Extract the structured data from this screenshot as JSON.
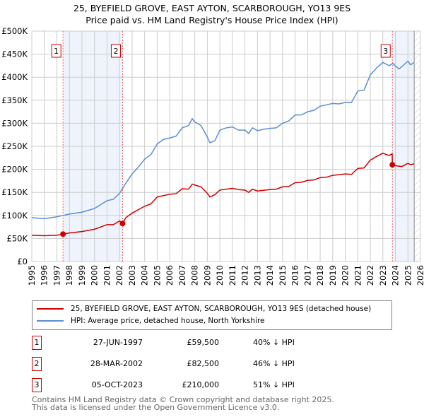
{
  "chart_data": {
    "type": "line",
    "title": "25, BYEFIELD GROVE, EAST AYTON, SCARBOROUGH, YO13 9ES",
    "subtitle": "Price paid vs. HM Land Registry's House Price Index (HPI)",
    "xlabel": "",
    "ylabel": "",
    "xlim": [
      1995,
      2026
    ],
    "ylim": [
      0,
      500000
    ],
    "x_ticks": [
      1995,
      1996,
      1997,
      1998,
      1999,
      2000,
      2001,
      2002,
      2003,
      2004,
      2005,
      2006,
      2007,
      2008,
      2009,
      2010,
      2011,
      2012,
      2013,
      2014,
      2015,
      2016,
      2017,
      2018,
      2019,
      2020,
      2021,
      2022,
      2023,
      2024,
      2025,
      2026
    ],
    "y_ticks": [
      {
        "v": 0,
        "label": "£0"
      },
      {
        "v": 50000,
        "label": "£50K"
      },
      {
        "v": 100000,
        "label": "£100K"
      },
      {
        "v": 150000,
        "label": "£150K"
      },
      {
        "v": 200000,
        "label": "£200K"
      },
      {
        "v": 250000,
        "label": "£250K"
      },
      {
        "v": 300000,
        "label": "£300K"
      },
      {
        "v": 350000,
        "label": "£350K"
      },
      {
        "v": 400000,
        "label": "£400K"
      },
      {
        "v": 450000,
        "label": "£450K"
      },
      {
        "v": 500000,
        "label": "£500K"
      }
    ],
    "grid": true,
    "shaded_ranges": [
      [
        1997.49,
        2002.24
      ],
      [
        2023.76,
        2025.5
      ]
    ],
    "projection_start": 2025.5,
    "series": [
      {
        "name": "25, BYEFIELD GROVE, EAST AYTON, SCARBOROUGH, YO13 9ES (detached house)",
        "color": "#cc0000",
        "points": [
          [
            1995,
            57000
          ],
          [
            1996,
            56000
          ],
          [
            1997,
            57000
          ],
          [
            1997.49,
            59500
          ],
          [
            1998,
            62000
          ],
          [
            1999,
            65000
          ],
          [
            2000,
            70000
          ],
          [
            2001,
            80000
          ],
          [
            2001.5,
            80000
          ],
          [
            2002,
            88000
          ],
          [
            2002.24,
            82500
          ],
          [
            2002.5,
            95000
          ],
          [
            2003,
            105000
          ],
          [
            2004,
            120000
          ],
          [
            2004.5,
            125000
          ],
          [
            2005,
            140000
          ],
          [
            2005.5,
            143000
          ],
          [
            2006,
            146000
          ],
          [
            2006.5,
            147000
          ],
          [
            2007,
            158000
          ],
          [
            2007.5,
            157000
          ],
          [
            2007.8,
            168000
          ],
          [
            2008,
            166000
          ],
          [
            2008.5,
            162000
          ],
          [
            2009,
            148000
          ],
          [
            2009.2,
            140000
          ],
          [
            2009.6,
            145000
          ],
          [
            2010,
            155000
          ],
          [
            2011,
            159000
          ],
          [
            2011.5,
            156000
          ],
          [
            2012,
            155000
          ],
          [
            2012.3,
            150000
          ],
          [
            2012.6,
            157000
          ],
          [
            2013,
            153000
          ],
          [
            2014,
            156000
          ],
          [
            2014.5,
            157000
          ],
          [
            2015,
            162000
          ],
          [
            2015.5,
            163000
          ],
          [
            2016,
            171000
          ],
          [
            2016.5,
            172000
          ],
          [
            2017,
            176000
          ],
          [
            2017.5,
            177000
          ],
          [
            2018,
            182000
          ],
          [
            2018.5,
            183000
          ],
          [
            2019,
            187000
          ],
          [
            2020,
            190000
          ],
          [
            2020.5,
            189000
          ],
          [
            2021,
            202000
          ],
          [
            2021.5,
            203000
          ],
          [
            2022,
            220000
          ],
          [
            2022.5,
            228000
          ],
          [
            2023,
            235000
          ],
          [
            2023.5,
            230000
          ],
          [
            2023.74,
            234000
          ],
          [
            2023.76,
            210000
          ],
          [
            2024,
            208000
          ],
          [
            2024.5,
            206000
          ],
          [
            2025,
            213000
          ],
          [
            2025.2,
            210000
          ],
          [
            2025.5,
            212000
          ]
        ]
      },
      {
        "name": "HPI: Average price, detached house, North Yorkshire",
        "color": "#5b8fd0",
        "points": [
          [
            1995,
            95000
          ],
          [
            1996,
            93000
          ],
          [
            1997,
            97000
          ],
          [
            1997.5,
            100000
          ],
          [
            1998,
            103000
          ],
          [
            1999,
            107000
          ],
          [
            2000,
            115000
          ],
          [
            2001,
            132000
          ],
          [
            2001.5,
            135000
          ],
          [
            2002,
            148000
          ],
          [
            2002.5,
            170000
          ],
          [
            2003,
            190000
          ],
          [
            2003.5,
            205000
          ],
          [
            2004,
            222000
          ],
          [
            2004.5,
            232000
          ],
          [
            2005,
            255000
          ],
          [
            2005.5,
            265000
          ],
          [
            2006,
            268000
          ],
          [
            2006.5,
            272000
          ],
          [
            2007,
            290000
          ],
          [
            2007.5,
            295000
          ],
          [
            2007.8,
            310000
          ],
          [
            2008,
            303000
          ],
          [
            2008.5,
            295000
          ],
          [
            2009,
            270000
          ],
          [
            2009.2,
            258000
          ],
          [
            2009.6,
            262000
          ],
          [
            2010,
            285000
          ],
          [
            2010.5,
            290000
          ],
          [
            2011,
            292000
          ],
          [
            2011.5,
            285000
          ],
          [
            2012,
            285000
          ],
          [
            2012.3,
            278000
          ],
          [
            2012.6,
            290000
          ],
          [
            2013,
            284000
          ],
          [
            2013.5,
            287000
          ],
          [
            2014,
            289000
          ],
          [
            2014.5,
            290000
          ],
          [
            2015,
            300000
          ],
          [
            2015.5,
            305000
          ],
          [
            2016,
            318000
          ],
          [
            2016.5,
            318000
          ],
          [
            2017,
            325000
          ],
          [
            2017.5,
            328000
          ],
          [
            2018,
            337000
          ],
          [
            2018.5,
            340000
          ],
          [
            2019,
            343000
          ],
          [
            2019.5,
            342000
          ],
          [
            2020,
            345000
          ],
          [
            2020.5,
            345000
          ],
          [
            2021,
            370000
          ],
          [
            2021.5,
            372000
          ],
          [
            2022,
            405000
          ],
          [
            2022.5,
            420000
          ],
          [
            2023,
            432000
          ],
          [
            2023.5,
            425000
          ],
          [
            2023.8,
            430000
          ],
          [
            2024,
            424000
          ],
          [
            2024.3,
            418000
          ],
          [
            2024.6,
            425000
          ],
          [
            2025,
            435000
          ],
          [
            2025.2,
            427000
          ],
          [
            2025.5,
            432000
          ]
        ]
      }
    ],
    "sales": [
      {
        "label": "1",
        "x": 1997.49,
        "y": 59500
      },
      {
        "label": "2",
        "x": 2002.24,
        "y": 82500
      },
      {
        "label": "3",
        "x": 2023.76,
        "y": 210000
      }
    ]
  },
  "header": {
    "title": "25, BYEFIELD GROVE, EAST AYTON, SCARBOROUGH, YO13 9ES",
    "subtitle": "Price paid vs. HM Land Registry's House Price Index (HPI)"
  },
  "legend": {
    "items": [
      {
        "label": "25, BYEFIELD GROVE, EAST AYTON, SCARBOROUGH, YO13 9ES (detached house)",
        "color": "#cc0000"
      },
      {
        "label": "HPI: Average price, detached house, North Yorkshire",
        "color": "#5b8fd0"
      }
    ]
  },
  "transactions": [
    {
      "num": "1",
      "date": "27-JUN-1997",
      "price": "£59,500",
      "hpi": "40% ↓ HPI"
    },
    {
      "num": "2",
      "date": "28-MAR-2002",
      "price": "£82,500",
      "hpi": "46% ↓ HPI"
    },
    {
      "num": "3",
      "date": "05-OCT-2023",
      "price": "£210,000",
      "hpi": "51% ↓ HPI"
    }
  ],
  "footer": {
    "line1": "Contains HM Land Registry data © Crown copyright and database right 2025.",
    "line2": "This data is licensed under the Open Government Licence v3.0."
  }
}
